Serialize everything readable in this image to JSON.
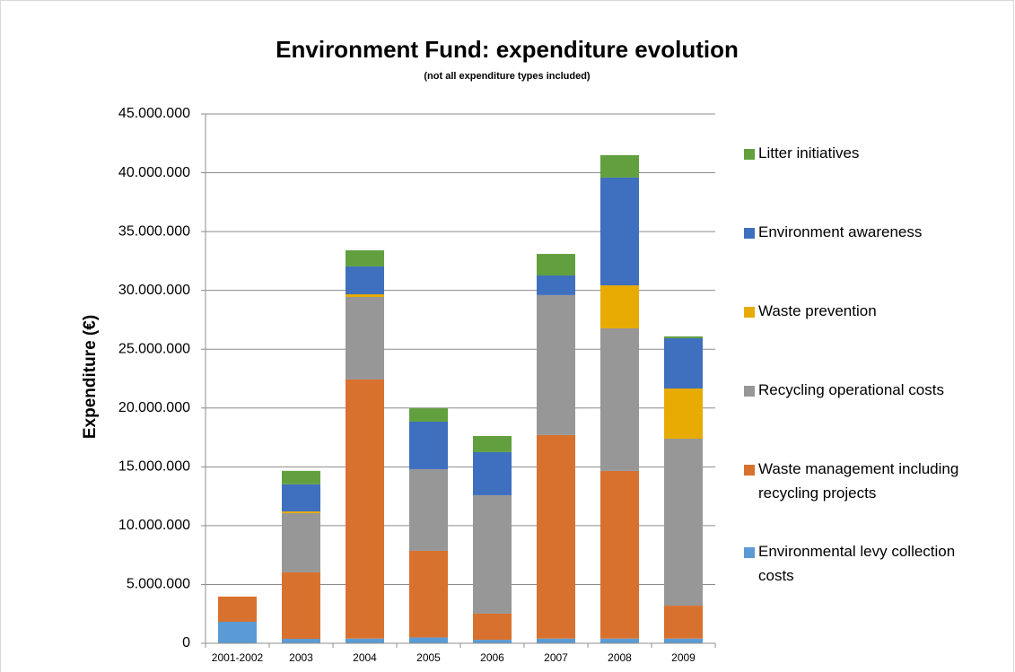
{
  "chart_data": {
    "type": "stacked-bar",
    "title": "Environment Fund: expenditure evolution",
    "subtitle": "(not all expenditure types included)",
    "y_label": "Expenditure (€)",
    "categories": [
      "2001-2002",
      "2003",
      "2004",
      "2005",
      "2006",
      "2007",
      "2008",
      "2009"
    ],
    "series": [
      {
        "name": "Environmental levy collection costs",
        "color": "#5b9bd5",
        "values": [
          1830000,
          380000,
          400000,
          500000,
          300000,
          400000,
          400000,
          400000
        ]
      },
      {
        "name": "Waste management including recycling projects",
        "color": "#d9712e",
        "values": [
          2140000,
          5650000,
          22030000,
          7360000,
          2220000,
          17300000,
          14250000,
          2800000
        ]
      },
      {
        "name": "Recycling operational costs",
        "color": "#979797",
        "values": [
          0,
          5030000,
          7010000,
          6940000,
          10070000,
          11900000,
          12120000,
          14190000
        ]
      },
      {
        "name": "Waste prevention",
        "color": "#e8ab04",
        "values": [
          0,
          150000,
          230000,
          0,
          0,
          0,
          3660000,
          4270000
        ]
      },
      {
        "name": "Environment awareness",
        "color": "#3f6fbf",
        "values": [
          0,
          2300000,
          2370000,
          4040000,
          3660000,
          1670000,
          9160000,
          4270000
        ]
      },
      {
        "name": "Litter initiatives",
        "color": "#62a03f",
        "values": [
          0,
          1150000,
          1370000,
          1140000,
          1370000,
          1830000,
          1910000,
          160000
        ]
      }
    ],
    "ylim": [
      0,
      45000000
    ],
    "yticks": [
      0,
      {
        "value": 5000000,
        "label": "5.000.000"
      },
      {
        "value": 10000000,
        "label": "10.000.000"
      },
      {
        "value": 15000000,
        "label": "15.000.000"
      },
      {
        "value": 20000000,
        "label": "20.000.000"
      },
      {
        "value": 25000000,
        "label": "25.000.000"
      },
      {
        "value": 30000000,
        "label": "30.000.000"
      },
      {
        "value": 35000000,
        "label": "35.000.000"
      },
      {
        "value": 40000000,
        "label": "40.000.000"
      },
      {
        "value": 45000000,
        "label": "45.000.000"
      }
    ],
    "grid": true,
    "legend": "right"
  }
}
